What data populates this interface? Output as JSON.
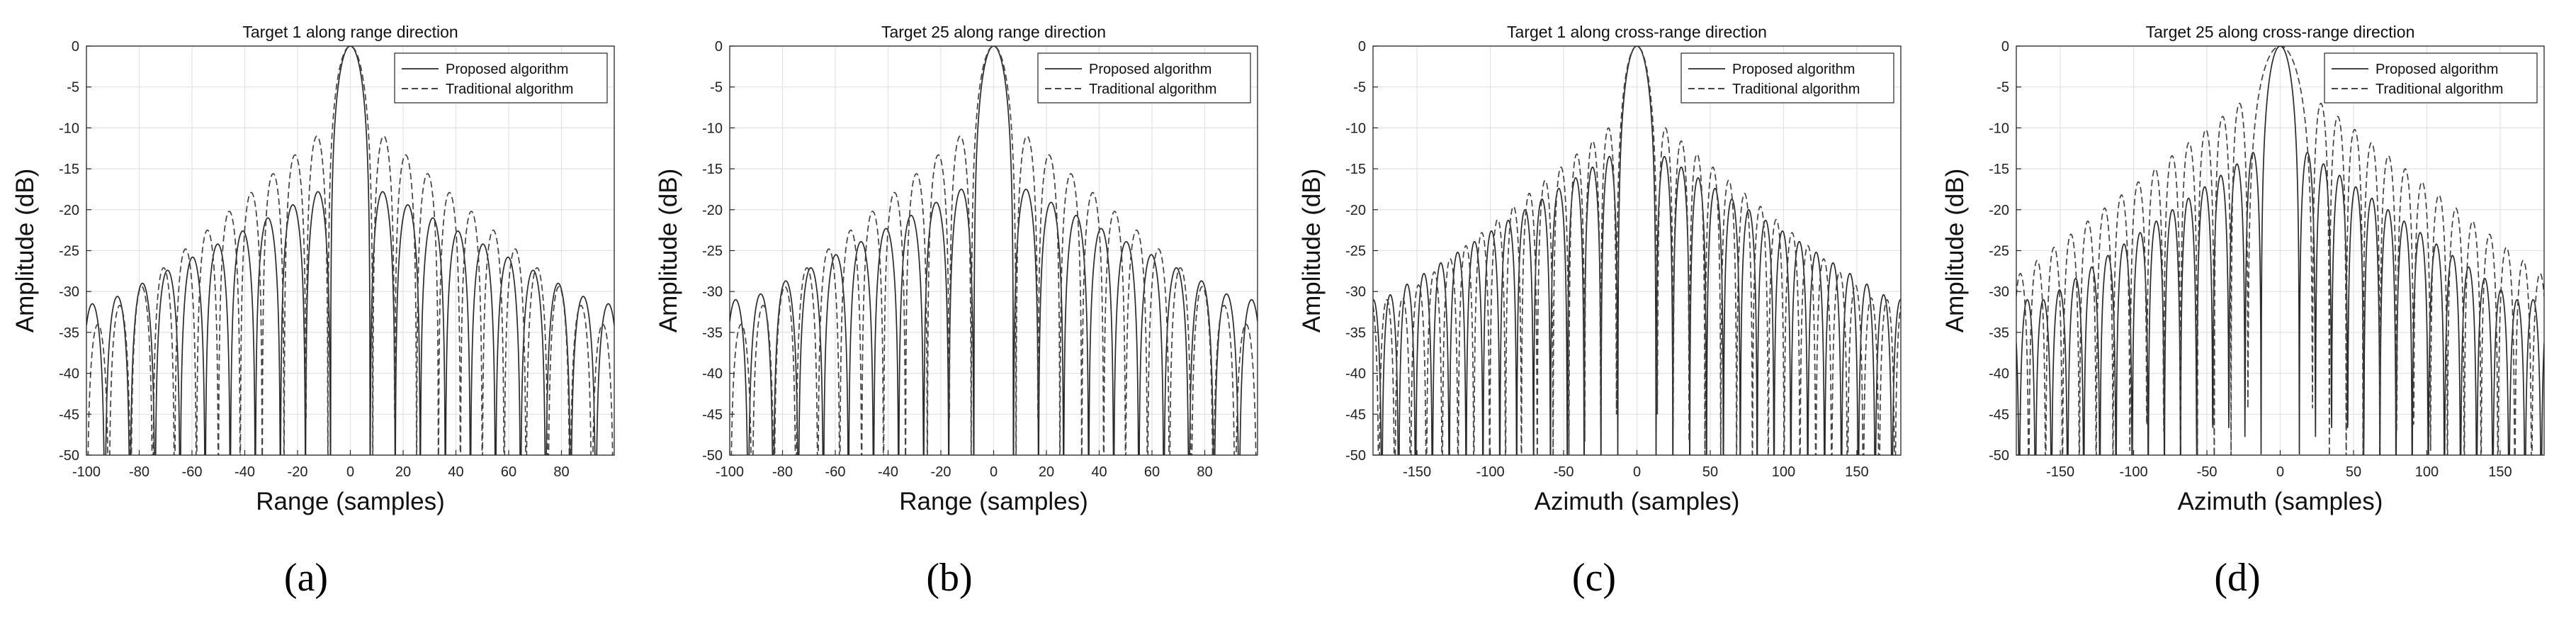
{
  "figure": {
    "subfigure_labels": [
      "(a)",
      "(b)",
      "(c)",
      "(d)"
    ]
  },
  "chart_data": [
    {
      "type": "line",
      "title": "Target 1 along range direction",
      "xlabel": "Range (samples)",
      "ylabel": "Amplitude (dB)",
      "xlim": [
        -100,
        100
      ],
      "ylim": [
        -50,
        0
      ],
      "xticks": [
        -100,
        -80,
        -60,
        -40,
        -20,
        0,
        20,
        40,
        60,
        80
      ],
      "yticks": [
        0,
        -5,
        -10,
        -15,
        -20,
        -25,
        -30,
        -35,
        -40,
        -45,
        -50
      ],
      "grid": true,
      "legend": "top-right",
      "series": [
        {
          "name": "Proposed algorithm",
          "style": "solid",
          "mainlobe_null": 7.5,
          "sidelobe_width": 9.5,
          "first_sidelobe_db": -17.8,
          "sidelobe_slope_db_per_lobe": -1.6,
          "floor_db": -31.5
        },
        {
          "name": "Traditional algorithm",
          "style": "dashed",
          "mainlobe_null": 8.5,
          "sidelobe_width": 8.3,
          "first_sidelobe_db": -11.0,
          "sidelobe_slope_db_per_lobe": -2.3,
          "floor_db": -35.5
        }
      ]
    },
    {
      "type": "line",
      "title": "Target 25 along range direction",
      "xlabel": "Range (samples)",
      "ylabel": "Amplitude (dB)",
      "xlim": [
        -100,
        100
      ],
      "ylim": [
        -50,
        0
      ],
      "xticks": [
        -100,
        -80,
        -60,
        -40,
        -20,
        0,
        20,
        40,
        60,
        80
      ],
      "yticks": [
        0,
        -5,
        -10,
        -15,
        -20,
        -25,
        -30,
        -35,
        -40,
        -45,
        -50
      ],
      "grid": true,
      "legend": "top-right",
      "series": [
        {
          "name": "Proposed algorithm",
          "style": "solid",
          "mainlobe_null": 7.5,
          "sidelobe_width": 9.5,
          "first_sidelobe_db": -17.5,
          "sidelobe_slope_db_per_lobe": -1.6,
          "floor_db": -31.0
        },
        {
          "name": "Traditional algorithm",
          "style": "dashed",
          "mainlobe_null": 8.5,
          "sidelobe_width": 8.3,
          "first_sidelobe_db": -11.0,
          "sidelobe_slope_db_per_lobe": -2.3,
          "floor_db": -35.0
        }
      ]
    },
    {
      "type": "line",
      "title": "Target 1 along cross-range direction",
      "xlabel": "Azimuth (samples)",
      "ylabel": "Amplitude (dB)",
      "xlim": [
        -180,
        180
      ],
      "ylim": [
        -50,
        0
      ],
      "xticks": [
        -150,
        -100,
        -50,
        0,
        50,
        100,
        150
      ],
      "yticks": [
        0,
        -5,
        -10,
        -15,
        -20,
        -25,
        -30,
        -35,
        -40,
        -45,
        -50
      ],
      "grid": true,
      "legend": "top-right",
      "series": [
        {
          "name": "Proposed algorithm",
          "style": "solid",
          "mainlobe_null": 13.0,
          "sidelobe_width": 11.5,
          "first_sidelobe_db": -13.5,
          "sidelobe_slope_db_per_lobe": -1.3,
          "floor_db": -31.0
        },
        {
          "name": "Traditional algorithm",
          "style": "dashed",
          "mainlobe_null": 14.0,
          "sidelobe_width": 10.8,
          "first_sidelobe_db": -10.0,
          "sidelobe_slope_db_per_lobe": -1.6,
          "floor_db": -31.0
        }
      ]
    },
    {
      "type": "line",
      "title": "Target 25 along cross-range direction",
      "xlabel": "Azimuth (samples)",
      "ylabel": "Amplitude (dB)",
      "xlim": [
        -180,
        180
      ],
      "ylim": [
        -50,
        0
      ],
      "xticks": [
        -150,
        -100,
        -50,
        0,
        50,
        100,
        150
      ],
      "yticks": [
        0,
        -5,
        -10,
        -15,
        -20,
        -25,
        -30,
        -35,
        -40,
        -45,
        -50
      ],
      "grid": true,
      "legend": "top-right",
      "series": [
        {
          "name": "Proposed algorithm",
          "style": "solid",
          "mainlobe_null": 13.0,
          "sidelobe_width": 11.0,
          "first_sidelobe_db": -13.0,
          "sidelobe_slope_db_per_lobe": -1.4,
          "floor_db": -31.0
        },
        {
          "name": "Traditional algorithm",
          "style": "dashed",
          "mainlobe_null": 22.0,
          "sidelobe_width": 11.5,
          "first_sidelobe_db": -7.0,
          "sidelobe_slope_db_per_lobe": -1.6,
          "floor_db": -29.0
        }
      ]
    }
  ]
}
